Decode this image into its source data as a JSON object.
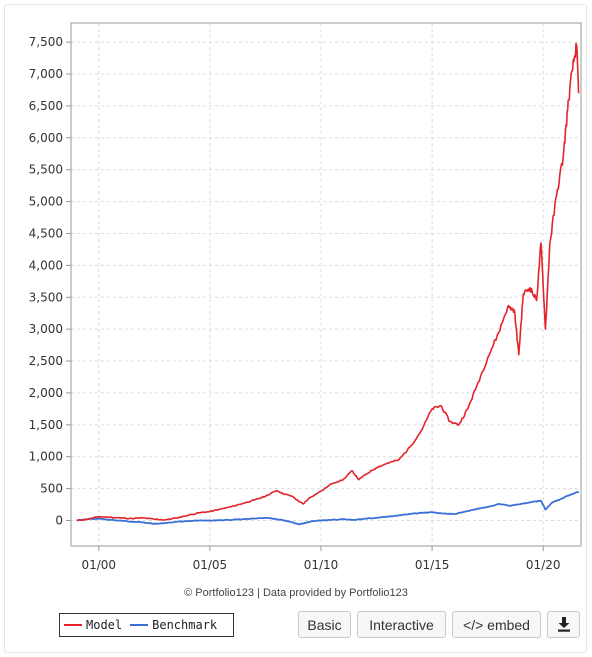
{
  "chart_data": {
    "type": "line",
    "ylim": [
      -400,
      7800
    ],
    "yticks": [
      {
        "v": 7500,
        "label": "7,500"
      },
      {
        "v": 7000,
        "label": "7,000"
      },
      {
        "v": 6500,
        "label": "6,500"
      },
      {
        "v": 6000,
        "label": "6,000"
      },
      {
        "v": 5500,
        "label": "5,500"
      },
      {
        "v": 5000,
        "label": "5,000"
      },
      {
        "v": 4500,
        "label": "4,500"
      },
      {
        "v": 4000,
        "label": "4,000"
      },
      {
        "v": 3500,
        "label": "3,500"
      },
      {
        "v": 3000,
        "label": "3,000"
      },
      {
        "v": 2500,
        "label": "2,500"
      },
      {
        "v": 2000,
        "label": "2,000"
      },
      {
        "v": 1500,
        "label": "1,500"
      },
      {
        "v": 1000,
        "label": "1,000"
      },
      {
        "v": 500,
        "label": "500"
      },
      {
        "v": 0,
        "label": "0"
      }
    ],
    "xlim": [
      1998.75,
      2021.7
    ],
    "xticks": [
      {
        "v": 2000,
        "label": "01/00"
      },
      {
        "v": 2005,
        "label": "01/05"
      },
      {
        "v": 2010,
        "label": "01/10"
      },
      {
        "v": 2015,
        "label": "01/15"
      },
      {
        "v": 2020,
        "label": "01/20"
      }
    ],
    "grid": true,
    "legend_position": "bottom-left",
    "series": [
      {
        "name": "Model",
        "color": "#e3242b",
        "points": [
          [
            1999.0,
            0
          ],
          [
            1999.5,
            20
          ],
          [
            2000.0,
            60
          ],
          [
            2000.5,
            50
          ],
          [
            2001.0,
            40
          ],
          [
            2001.5,
            30
          ],
          [
            2002.0,
            40
          ],
          [
            2002.5,
            20
          ],
          [
            2003.0,
            10
          ],
          [
            2003.5,
            40
          ],
          [
            2004.0,
            80
          ],
          [
            2004.5,
            120
          ],
          [
            2005.0,
            140
          ],
          [
            2005.5,
            180
          ],
          [
            2006.0,
            220
          ],
          [
            2006.5,
            270
          ],
          [
            2007.0,
            320
          ],
          [
            2007.5,
            380
          ],
          [
            2008.0,
            470
          ],
          [
            2008.3,
            420
          ],
          [
            2008.7,
            380
          ],
          [
            2009.0,
            300
          ],
          [
            2009.2,
            260
          ],
          [
            2009.5,
            360
          ],
          [
            2010.0,
            460
          ],
          [
            2010.5,
            580
          ],
          [
            2011.0,
            640
          ],
          [
            2011.4,
            780
          ],
          [
            2011.7,
            640
          ],
          [
            2012.0,
            720
          ],
          [
            2012.5,
            830
          ],
          [
            2013.0,
            900
          ],
          [
            2013.5,
            950
          ],
          [
            2014.0,
            1150
          ],
          [
            2014.5,
            1400
          ],
          [
            2015.0,
            1750
          ],
          [
            2015.4,
            1800
          ],
          [
            2015.8,
            1550
          ],
          [
            2016.2,
            1500
          ],
          [
            2016.6,
            1750
          ],
          [
            2017.0,
            2100
          ],
          [
            2017.5,
            2550
          ],
          [
            2018.0,
            2950
          ],
          [
            2018.4,
            3350
          ],
          [
            2018.7,
            3300
          ],
          [
            2018.9,
            2600
          ],
          [
            2019.1,
            3550
          ],
          [
            2019.4,
            3650
          ],
          [
            2019.7,
            3450
          ],
          [
            2019.9,
            4350
          ],
          [
            2020.1,
            3000
          ],
          [
            2020.3,
            4350
          ],
          [
            2020.6,
            5100
          ],
          [
            2020.9,
            5700
          ],
          [
            2021.1,
            6450
          ],
          [
            2021.3,
            7050
          ],
          [
            2021.5,
            7450
          ],
          [
            2021.6,
            6700
          ]
        ]
      },
      {
        "name": "Benchmark",
        "color": "#3a6fd8",
        "points": [
          [
            1999.0,
            0
          ],
          [
            1999.5,
            20
          ],
          [
            2000.0,
            30
          ],
          [
            2000.5,
            10
          ],
          [
            2001.0,
            0
          ],
          [
            2001.5,
            -20
          ],
          [
            2002.0,
            -30
          ],
          [
            2002.5,
            -50
          ],
          [
            2003.0,
            -40
          ],
          [
            2003.5,
            -20
          ],
          [
            2004.0,
            -10
          ],
          [
            2004.5,
            0
          ],
          [
            2005.0,
            0
          ],
          [
            2005.5,
            5
          ],
          [
            2006.0,
            10
          ],
          [
            2006.5,
            20
          ],
          [
            2007.0,
            30
          ],
          [
            2007.5,
            40
          ],
          [
            2008.0,
            20
          ],
          [
            2008.5,
            -10
          ],
          [
            2009.0,
            -60
          ],
          [
            2009.3,
            -40
          ],
          [
            2009.6,
            -10
          ],
          [
            2010.0,
            0
          ],
          [
            2010.5,
            10
          ],
          [
            2011.0,
            20
          ],
          [
            2011.5,
            10
          ],
          [
            2012.0,
            30
          ],
          [
            2012.5,
            40
          ],
          [
            2013.0,
            60
          ],
          [
            2013.5,
            80
          ],
          [
            2014.0,
            100
          ],
          [
            2014.5,
            120
          ],
          [
            2015.0,
            130
          ],
          [
            2015.5,
            110
          ],
          [
            2016.0,
            100
          ],
          [
            2016.5,
            140
          ],
          [
            2017.0,
            180
          ],
          [
            2017.5,
            210
          ],
          [
            2018.0,
            260
          ],
          [
            2018.5,
            230
          ],
          [
            2019.0,
            260
          ],
          [
            2019.5,
            290
          ],
          [
            2019.9,
            310
          ],
          [
            2020.1,
            170
          ],
          [
            2020.4,
            280
          ],
          [
            2020.8,
            340
          ],
          [
            2021.2,
            400
          ],
          [
            2021.6,
            450
          ]
        ]
      }
    ]
  },
  "credit": "© Portfolio123 | Data provided by Portfolio123",
  "legend": {
    "model_label": "Model",
    "benchmark_label": "Benchmark"
  },
  "buttons": {
    "basic": "Basic",
    "interactive": "Interactive",
    "embed": "</> embed",
    "download_icon": "download-icon"
  }
}
